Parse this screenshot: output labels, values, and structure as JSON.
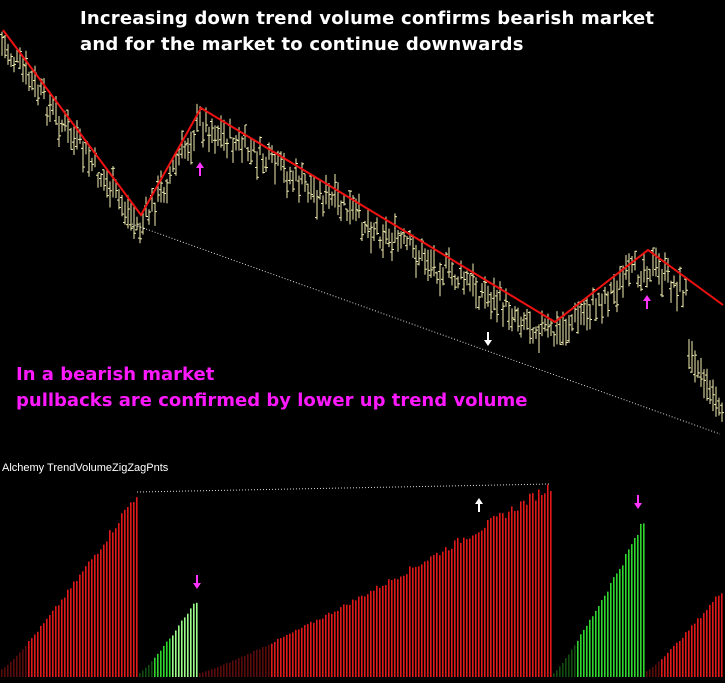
{
  "texts": {
    "title_line1": "Increasing down trend volume confirms bearish market",
    "title_line2": "and for the market to continue downwards",
    "note_line1": "In a bearish market",
    "note_line2": "pullbacks are confirmed by lower up trend volume",
    "indicator_label": "Alchemy TrendVolumeZigZagPnts"
  },
  "colors": {
    "background": "#000000",
    "price_bars": "#f3f0b0",
    "zigzag": "#ee1111",
    "down_volume": "#e01a1a",
    "down_volume_dark": "#5a0c0c",
    "up_volume": "#2ed62e",
    "up_volume_dark": "#114d11",
    "highlight_green": "#9dff8a",
    "magenta_arrow": "#ff33ff",
    "white_arrow": "#ffffff",
    "dotted_lines": "#dddddd",
    "title_text": "#ffffff",
    "note_text": "#ff19ff"
  },
  "chart_data": [
    {
      "type": "bar",
      "subtype": "ohlc",
      "bar_count": 240,
      "zigzag_pivots": [
        {
          "bar": 0,
          "kind": "high"
        },
        {
          "bar": 46,
          "kind": "low"
        },
        {
          "bar": 66,
          "kind": "high"
        },
        {
          "bar": 184,
          "kind": "low"
        },
        {
          "bar": 215,
          "kind": "high"
        },
        {
          "bar": 240,
          "kind": "low"
        }
      ],
      "arrows": [
        {
          "bar": 66,
          "direction": "up",
          "color": "magenta"
        },
        {
          "bar": 162,
          "direction": "down",
          "color": "white"
        },
        {
          "bar": 215,
          "direction": "up",
          "color": "magenta"
        }
      ],
      "trendline": {
        "from_bar": 43,
        "to_bar": 240,
        "style": "dotted"
      }
    },
    {
      "type": "bar",
      "name": "Alchemy TrendVolumeZigZagPnts",
      "segments": [
        {
          "from_bar": 0,
          "to_bar": 45,
          "trend": "down",
          "start_level": 0.04,
          "end_level": 0.96
        },
        {
          "from_bar": 46,
          "to_bar": 65,
          "trend": "up",
          "start_level": 0.02,
          "end_level": 0.4
        },
        {
          "from_bar": 66,
          "to_bar": 183,
          "trend": "down",
          "start_level": 0.02,
          "end_level": 1.0
        },
        {
          "from_bar": 184,
          "to_bar": 214,
          "trend": "up",
          "start_level": 0.02,
          "end_level": 0.81
        },
        {
          "from_bar": 215,
          "to_bar": 240,
          "trend": "down",
          "start_level": 0.03,
          "end_level": 0.45
        }
      ],
      "arrows": [
        {
          "bar": 65,
          "direction": "down",
          "color": "magenta"
        },
        {
          "bar": 159,
          "direction": "up",
          "color": "white"
        },
        {
          "bar": 212,
          "direction": "down",
          "color": "magenta"
        }
      ],
      "connector": {
        "from_bar": 45,
        "to_bar": 183,
        "style": "dotted"
      }
    }
  ]
}
